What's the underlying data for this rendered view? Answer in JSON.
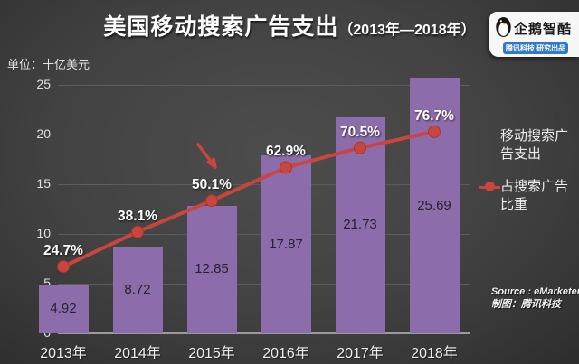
{
  "title": {
    "main": "美国移动搜索广告支出",
    "range": "（2013年—2018年）"
  },
  "unit_label": "单位：十亿美元",
  "logo": {
    "name": "企鹅智酷",
    "badge": "腾讯科技 研究出品"
  },
  "legend": {
    "items": [
      {
        "label": "移动搜索广告支出",
        "marker": "bar-swatch",
        "color": "#8d6cab"
      },
      {
        "label": "占搜索广告比重",
        "marker": "line-dot",
        "color": "#c9463e"
      }
    ]
  },
  "source": {
    "line1": "Source : eMarketer",
    "line2": "制图：腾讯科技"
  },
  "annotation": {
    "type": "arrow",
    "points_at": "2015 line point (50.1%)",
    "color": "#c9463e"
  },
  "colors": {
    "bar": "#8d6cab",
    "line": "#c9463e",
    "background_center": "#4d4d4d",
    "background_edge": "#242424",
    "badge_blue": "#3178cc"
  },
  "chart_data": {
    "type": "bar",
    "subtype": "combo-bar-line",
    "title": "美国移动搜索广告支出（2013年—2018年）",
    "categories": [
      "2013年",
      "2014年",
      "2015年",
      "2016年",
      "2017年",
      "2018年"
    ],
    "series": [
      {
        "name": "移动搜索广告支出",
        "type": "bar",
        "unit": "十亿美元",
        "values": [
          4.92,
          8.72,
          12.85,
          17.87,
          21.73,
          25.69
        ]
      },
      {
        "name": "占搜索广告比重",
        "type": "line",
        "unit": "%",
        "values": [
          24.7,
          38.1,
          50.1,
          62.9,
          70.5,
          76.7
        ]
      }
    ],
    "xlabel": "",
    "ylabel": "单位：十亿美元",
    "ylim": [
      0,
      25
    ],
    "yticks": [
      0,
      5,
      10,
      15,
      20,
      25
    ],
    "grid": true,
    "legend_position": "right"
  }
}
